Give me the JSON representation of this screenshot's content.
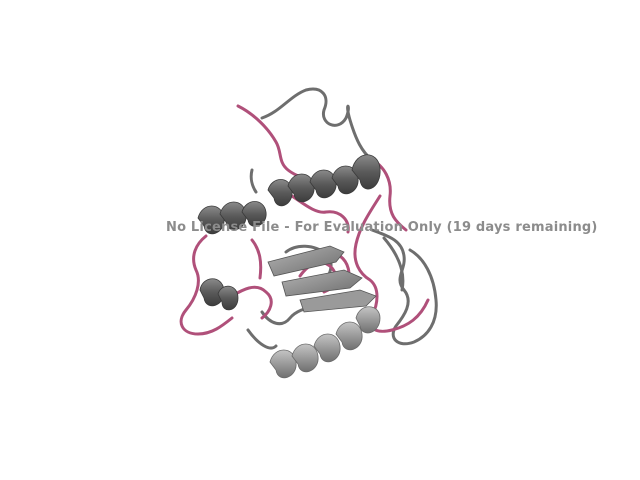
{
  "viewer": {
    "watermark_text": "No License File - For Evaluation Only (19 days remaining)",
    "background_color": "#ffffff"
  },
  "colors": {
    "cartoon_dark": "#5a5a5a",
    "cartoon_mid": "#7a7a7a",
    "cartoon_light": "#a8a8a8",
    "coil_pink": "#b0507a",
    "coil_gray": "#6e6e6e"
  },
  "icons": {
    "structure": "protein-cartoon-icon"
  }
}
